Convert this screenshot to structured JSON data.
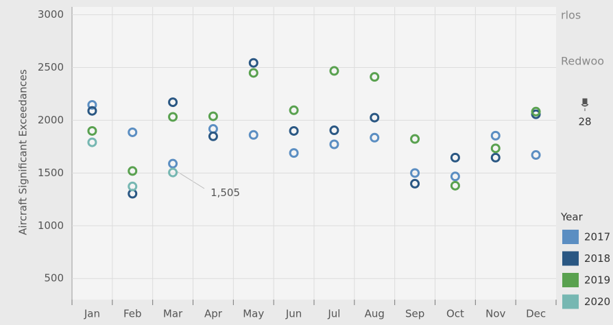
{
  "chart_data": {
    "type": "dot",
    "y_axis_label": "Aircraft Significant Exceedances",
    "categories": [
      "Jan",
      "Feb",
      "Mar",
      "Apr",
      "May",
      "Jun",
      "Jul",
      "Aug",
      "Sep",
      "Oct",
      "Nov",
      "Dec"
    ],
    "legend_title": "Year",
    "series": [
      {
        "name": "2017",
        "color": "#5b8ec2",
        "values": [
          2146,
          1886,
          1589,
          1918,
          1861,
          1690,
          1772,
          1835,
          1500,
          1468,
          1854,
          1671
        ]
      },
      {
        "name": "2018",
        "color": "#2a5783",
        "values": [
          2089,
          1304,
          2171,
          1848,
          2544,
          1899,
          1905,
          2025,
          1399,
          1646,
          1646,
          2057
        ]
      },
      {
        "name": "2019",
        "color": "#59a14f",
        "values": [
          1899,
          1519,
          2032,
          2038,
          2449,
          2095,
          2468,
          2411,
          1823,
          1380,
          1734,
          2082
        ]
      },
      {
        "name": "2020",
        "color": "#76b7b2",
        "values": [
          1791,
          1373,
          1505,
          null,
          null,
          null,
          null,
          null,
          null,
          null,
          null,
          null
        ],
        "value_labels": [
          null,
          null,
          "1,505",
          null,
          null,
          null,
          null,
          null,
          null,
          null,
          null,
          null
        ]
      }
    ],
    "ylim": [
      300,
      3075
    ],
    "yticks": [
      500,
      1000,
      1500,
      2000,
      2500,
      3000
    ],
    "grid": true,
    "map_labels": [
      "rlos",
      "Redwoo",
      "28"
    ]
  }
}
